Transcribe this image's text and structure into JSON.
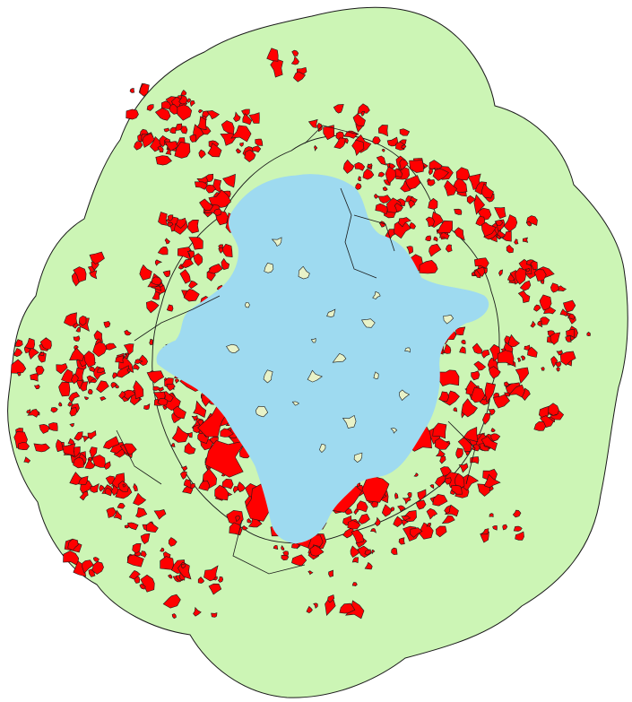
{
  "map": {
    "colors": {
      "background": "#ffffff",
      "buffer_zone": "#ccf5b5",
      "outline": "#1a1a1a",
      "water": "#9edaf0",
      "patches": "#ff0000",
      "islands": "#e8f2c8"
    }
  }
}
